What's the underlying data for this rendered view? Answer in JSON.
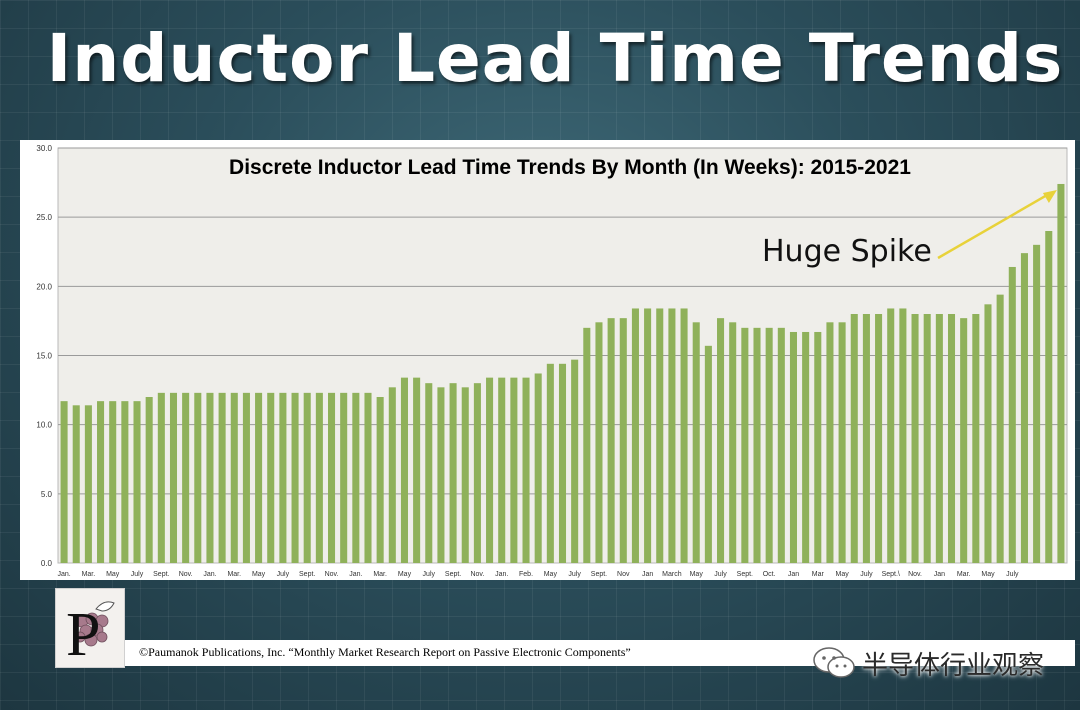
{
  "slide": {
    "title": "Inductor Lead Time Trends"
  },
  "chart_data": {
    "type": "bar",
    "title": "Discrete Inductor Lead Time Trends By Month  (In Weeks): 2015-2021",
    "xlabel": "",
    "ylabel": "",
    "ylim": [
      0,
      30
    ],
    "y_ticks": [
      "0.0",
      "5.0",
      "10.0",
      "15.0",
      "20.0",
      "25.0",
      "30.0"
    ],
    "grid": true,
    "bar_color": "#8fb15a",
    "x_tick_labels": [
      "Jan.",
      "Mar.",
      "May",
      "July",
      "Sept.",
      "Nov.",
      "Jan.",
      "Mar.",
      "May",
      "July",
      "Sept.",
      "Nov.",
      "Jan.",
      "Mar.",
      "May",
      "July",
      "Sept.",
      "Nov.",
      "Jan.",
      "Feb.",
      "May",
      "July",
      "Sept.",
      "Nov",
      "Jan",
      "March",
      "May",
      "July",
      "Sept.",
      "Oct.",
      "Jan",
      "Mar",
      "May",
      "July",
      "Sept.\\",
      "Nov.",
      "Jan",
      "Mar.",
      "May",
      "July"
    ],
    "values": [
      11.7,
      11.4,
      11.4,
      11.7,
      11.7,
      11.7,
      11.7,
      12.0,
      12.3,
      12.3,
      12.3,
      12.3,
      12.3,
      12.3,
      12.3,
      12.3,
      12.3,
      12.3,
      12.3,
      12.3,
      12.3,
      12.3,
      12.3,
      12.3,
      12.3,
      12.3,
      12.0,
      12.7,
      13.4,
      13.4,
      13.0,
      12.7,
      13.0,
      12.7,
      13.0,
      13.4,
      13.4,
      13.4,
      13.4,
      13.7,
      14.4,
      14.4,
      14.7,
      17.0,
      17.4,
      17.7,
      17.7,
      18.4,
      18.4,
      18.4,
      18.4,
      18.4,
      17.4,
      15.7,
      17.7,
      17.4,
      17.0,
      17.0,
      17.0,
      17.0,
      16.7,
      16.7,
      16.7,
      17.4,
      17.4,
      18.0,
      18.0,
      18.0,
      18.4,
      18.4,
      18.0,
      18.0,
      18.0,
      18.0,
      17.7,
      18.0,
      18.7,
      19.4,
      21.4,
      22.4,
      23.0,
      24.0,
      27.4
    ],
    "annotations": [
      {
        "text": "Huge Spike",
        "color": "#000000",
        "arrow_color": "#e8d23a"
      }
    ]
  },
  "footer": {
    "caption": "©Paumanok Publications, Inc. “Monthly Market Research Report on Passive Electronic Components”",
    "logo_letter": "P",
    "watermark": "半导体行业观察"
  },
  "colors": {
    "background": "#2b4e5b",
    "bar": "#8fb15a",
    "plot_bg": "#efeeea",
    "arrow": "#e8d23a",
    "logo_grapes": "#a77a8c"
  },
  "icons": [
    "logo-p-icon",
    "wechat-icon"
  ]
}
